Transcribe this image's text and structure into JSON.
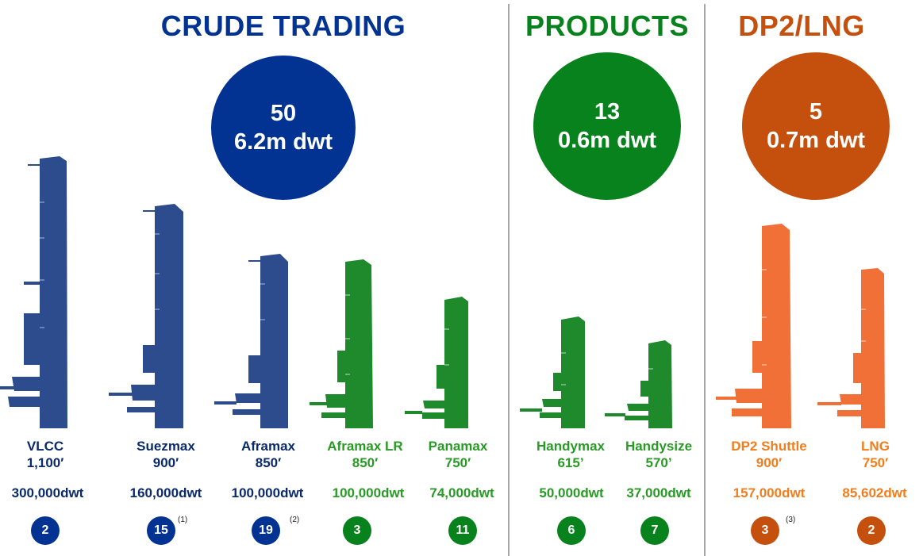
{
  "colors": {
    "crude": "#023393",
    "products": "#08821c",
    "lng": "#c5500d",
    "crude_ship": "#2d4c8e",
    "products_ship": "#1f8a2c",
    "lng_ship": "#f07038"
  },
  "sections": {
    "crude": {
      "title": "CRUDE TRADING",
      "count": "50",
      "dwt": "6.2m dwt"
    },
    "products": {
      "title": "PRODUCTS",
      "count": "13",
      "dwt": "0.6m dwt"
    },
    "lng": {
      "title": "DP2/LNG",
      "count": "5",
      "dwt": "0.7m dwt"
    }
  },
  "vessels": [
    {
      "name": "VLCC",
      "length": "1,100′",
      "dwt": "300,000dwt",
      "count": "2",
      "note": ""
    },
    {
      "name": "Suezmax",
      "length": "900′",
      "dwt": "160,000dwt",
      "count": "15",
      "note": "(1)"
    },
    {
      "name": "Aframax",
      "length": "850′",
      "dwt": "100,000dwt",
      "count": "19",
      "note": "(2)"
    },
    {
      "name": "Aframax LR",
      "length": "850′",
      "dwt": "100,000dwt",
      "count": "3",
      "note": ""
    },
    {
      "name": "Panamax",
      "length": "750′",
      "dwt": "74,000dwt",
      "count": "11",
      "note": ""
    },
    {
      "name": "Handymax",
      "length": "615’",
      "dwt": "50,000dwt",
      "count": "6",
      "note": ""
    },
    {
      "name": "Handysize",
      "length": "570’",
      "dwt": "37,000dwt",
      "count": "7",
      "note": ""
    },
    {
      "name": "DP2 Shuttle",
      "length": "900′",
      "dwt": "157,000dwt",
      "count": "3",
      "note": "(3)"
    },
    {
      "name": "LNG",
      "length": "750′",
      "dwt": "85,602dwt",
      "count": "2",
      "note": ""
    }
  ]
}
